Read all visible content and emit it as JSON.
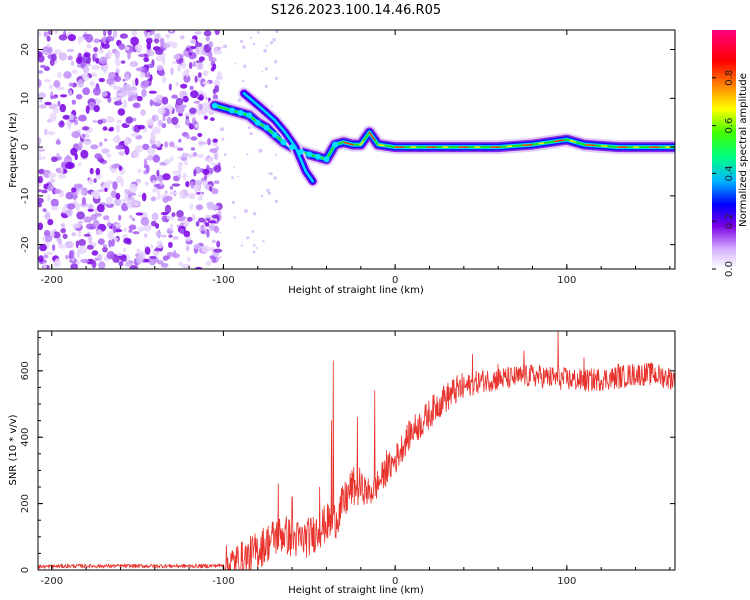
{
  "figure": {
    "title": "S126.2023.100.14.46.R05"
  },
  "chart_data": [
    {
      "type": "heatmap",
      "title": "",
      "xlabel": "Height of straight line (km)",
      "ylabel": "Frequency (Hz)",
      "xlim": [
        -208,
        163
      ],
      "ylim": [
        -25,
        24
      ],
      "xticks": [
        -200,
        -100,
        0,
        100
      ],
      "yticks": [
        -20,
        -10,
        0,
        10,
        20
      ],
      "xtick_labels": [
        "-200",
        "-100",
        "0",
        "100"
      ],
      "ytick_labels": [
        "-20",
        "-10",
        "0",
        "10",
        "20"
      ],
      "colorbar": {
        "label": "Normalized spectral amplitude",
        "range": [
          0,
          1
        ],
        "ticks": [
          0.0,
          0.2,
          0.4,
          0.6,
          0.8
        ],
        "tick_labels": [
          "0.0",
          "0.2",
          "0.4",
          "0.6",
          "0.8"
        ],
        "colormap": [
          "#ffffff",
          "#d8b4fe",
          "#7a00e6",
          "#0000ff",
          "#00e5ff",
          "#00ff00",
          "#ffff00",
          "#ff8000",
          "#ff0000",
          "#ff0080"
        ]
      },
      "noise_region_km": [
        -208,
        -102
      ],
      "signal_track": [
        {
          "x": -105,
          "f": 8.5
        },
        {
          "x": -95,
          "f": 7.5
        },
        {
          "x": -90,
          "f": 7.0
        },
        {
          "x": -85,
          "f": 6.5
        },
        {
          "x": -80,
          "f": 5.0
        },
        {
          "x": -75,
          "f": 4.0
        },
        {
          "x": -70,
          "f": 2.5
        },
        {
          "x": -65,
          "f": 1.0
        },
        {
          "x": -60,
          "f": 0.0
        },
        {
          "x": -55,
          "f": -1.0
        },
        {
          "x": -50,
          "f": -1.5
        },
        {
          "x": -45,
          "f": -2.0
        },
        {
          "x": -40,
          "f": -2.5
        },
        {
          "x": -35,
          "f": 0.5
        },
        {
          "x": -30,
          "f": 1.0
        },
        {
          "x": -25,
          "f": 0.5
        },
        {
          "x": -20,
          "f": 0.5
        },
        {
          "x": -15,
          "f": 3.0
        },
        {
          "x": -10,
          "f": 0.5
        },
        {
          "x": 0,
          "f": 0.0
        },
        {
          "x": 20,
          "f": 0.0
        },
        {
          "x": 40,
          "f": 0.0
        },
        {
          "x": 60,
          "f": 0.0
        },
        {
          "x": 80,
          "f": 0.5
        },
        {
          "x": 100,
          "f": 1.5
        },
        {
          "x": 110,
          "f": 0.5
        },
        {
          "x": 130,
          "f": 0.0
        },
        {
          "x": 150,
          "f": 0.0
        },
        {
          "x": 163,
          "f": 0.0
        }
      ],
      "upper_branch": [
        {
          "x": -88,
          "f": 11.0
        },
        {
          "x": -78,
          "f": 8.0
        },
        {
          "x": -70,
          "f": 5.5
        },
        {
          "x": -64,
          "f": 3.0
        },
        {
          "x": -58,
          "f": 0.0
        },
        {
          "x": -52,
          "f": -5.0
        },
        {
          "x": -48,
          "f": -7.0
        }
      ]
    },
    {
      "type": "line",
      "title": "",
      "xlabel": "Height of straight line (km)",
      "ylabel": "SNR (10 * v/v)",
      "xlim": [
        -208,
        163
      ],
      "ylim": [
        0,
        720
      ],
      "xticks": [
        -200,
        -100,
        0,
        100
      ],
      "yticks": [
        0,
        200,
        400,
        600
      ],
      "xtick_labels": [
        "-200",
        "-100",
        "0",
        "100"
      ],
      "ytick_labels": [
        "0",
        "200",
        "400",
        "600"
      ],
      "line_color": "#e8322c",
      "series": [
        {
          "name": "SNR",
          "x": [
            -208,
            -190,
            -170,
            -150,
            -130,
            -110,
            -100,
            -95,
            -90,
            -85,
            -80,
            -75,
            -70,
            -65,
            -60,
            -55,
            -50,
            -45,
            -40,
            -35,
            -30,
            -25,
            -20,
            -15,
            -10,
            -5,
            0,
            5,
            10,
            15,
            20,
            25,
            30,
            35,
            40,
            50,
            60,
            70,
            80,
            90,
            100,
            110,
            120,
            130,
            140,
            150,
            163
          ],
          "values": [
            10,
            12,
            12,
            12,
            12,
            12,
            14,
            18,
            25,
            40,
            60,
            80,
            100,
            110,
            95,
            90,
            100,
            120,
            140,
            150,
            200,
            250,
            250,
            230,
            260,
            300,
            330,
            380,
            420,
            440,
            470,
            500,
            520,
            540,
            550,
            570,
            575,
            580,
            585,
            580,
            575,
            570,
            575,
            580,
            590,
            590,
            575
          ]
        }
      ],
      "spikes": [
        {
          "x": -68,
          "y": 260
        },
        {
          "x": -60,
          "y": 220
        },
        {
          "x": -44,
          "y": 250
        },
        {
          "x": -37,
          "y": 450
        },
        {
          "x": -36,
          "y": 630
        },
        {
          "x": -22,
          "y": 460
        },
        {
          "x": -12,
          "y": 540
        },
        {
          "x": -5,
          "y": 360
        },
        {
          "x": 28,
          "y": 550
        },
        {
          "x": 45,
          "y": 650
        },
        {
          "x": 60,
          "y": 620
        },
        {
          "x": 75,
          "y": 660
        },
        {
          "x": 95,
          "y": 720
        },
        {
          "x": 110,
          "y": 640
        },
        {
          "x": 130,
          "y": 620
        },
        {
          "x": 150,
          "y": 620
        }
      ]
    }
  ]
}
